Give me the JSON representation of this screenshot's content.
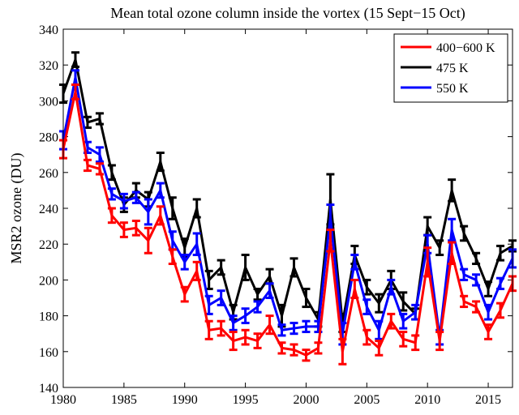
{
  "chart_data": {
    "type": "errorbar-line",
    "title": "Mean total ozone column inside the vortex (15  Sept−15 Oct)",
    "y_label": "MSR2 ozone  (DU)",
    "x": [
      1980,
      1981,
      1982,
      1983,
      1984,
      1985,
      1986,
      1987,
      1988,
      1989,
      1990,
      1991,
      1992,
      1993,
      1994,
      1995,
      1996,
      1997,
      1998,
      1999,
      2000,
      2001,
      2002,
      2003,
      2004,
      2005,
      2006,
      2007,
      2008,
      2009,
      2010,
      2011,
      2012,
      2013,
      2014,
      2015,
      2016,
      2017
    ],
    "series": [
      {
        "name": "400−600 K",
        "color": "#ff0000",
        "values": [
          273,
          305,
          264,
          262,
          236,
          228,
          229,
          222,
          236,
          213,
          192,
          205,
          172,
          173,
          166,
          168,
          166,
          175,
          162,
          161,
          158,
          162,
          222,
          160,
          195,
          168,
          162,
          177,
          167,
          165,
          210,
          166,
          215,
          188,
          185,
          171,
          183,
          198
        ],
        "errors": [
          5,
          4,
          3,
          3,
          4,
          4,
          4,
          7,
          5,
          4,
          4,
          5,
          5,
          4,
          5,
          4,
          4,
          5,
          3,
          3,
          3,
          3,
          6,
          7,
          5,
          4,
          4,
          4,
          4,
          4,
          8,
          5,
          6,
          3,
          3,
          4,
          4,
          4
        ]
      },
      {
        "name": "475 K",
        "color": "#000000",
        "values": [
          304,
          323,
          288,
          290,
          260,
          242,
          250,
          245,
          266,
          240,
          218,
          240,
          200,
          207,
          182,
          207,
          192,
          202,
          180,
          207,
          190,
          178,
          245,
          176,
          214,
          196,
          187,
          200,
          188,
          181,
          230,
          218,
          250,
          226,
          212,
          195,
          215,
          219
        ],
        "errors": [
          5,
          4,
          3,
          3,
          4,
          4,
          4,
          4,
          5,
          6,
          5,
          5,
          5,
          4,
          4,
          7,
          3,
          4,
          6,
          5,
          5,
          4,
          14,
          5,
          5,
          4,
          5,
          5,
          5,
          3,
          5,
          4,
          6,
          4,
          3,
          4,
          4,
          3
        ]
      },
      {
        "name": "550 K",
        "color": "#0000ff",
        "values": [
          278,
          313,
          274,
          270,
          248,
          244,
          246,
          238,
          250,
          222,
          210,
          220,
          186,
          190,
          176,
          180,
          185,
          194,
          172,
          173,
          174,
          174,
          235,
          170,
          210,
          185,
          172,
          196,
          177,
          182,
          220,
          168,
          228,
          203,
          200,
          182,
          198,
          212
        ],
        "errors": [
          5,
          4,
          3,
          4,
          3,
          4,
          3,
          7,
          4,
          5,
          4,
          6,
          5,
          4,
          4,
          4,
          3,
          4,
          3,
          3,
          3,
          3,
          7,
          6,
          4,
          4,
          5,
          4,
          4,
          4,
          5,
          4,
          6,
          3,
          3,
          4,
          3,
          5
        ]
      }
    ],
    "xlim": [
      1980,
      2017
    ],
    "xticks": [
      1980,
      1985,
      1990,
      1995,
      2000,
      2005,
      2010,
      2015
    ],
    "ylim": [
      140,
      340
    ],
    "yticks": [
      140,
      160,
      180,
      200,
      220,
      240,
      260,
      280,
      300,
      320,
      340
    ],
    "legend": "upper right",
    "grid": false
  }
}
